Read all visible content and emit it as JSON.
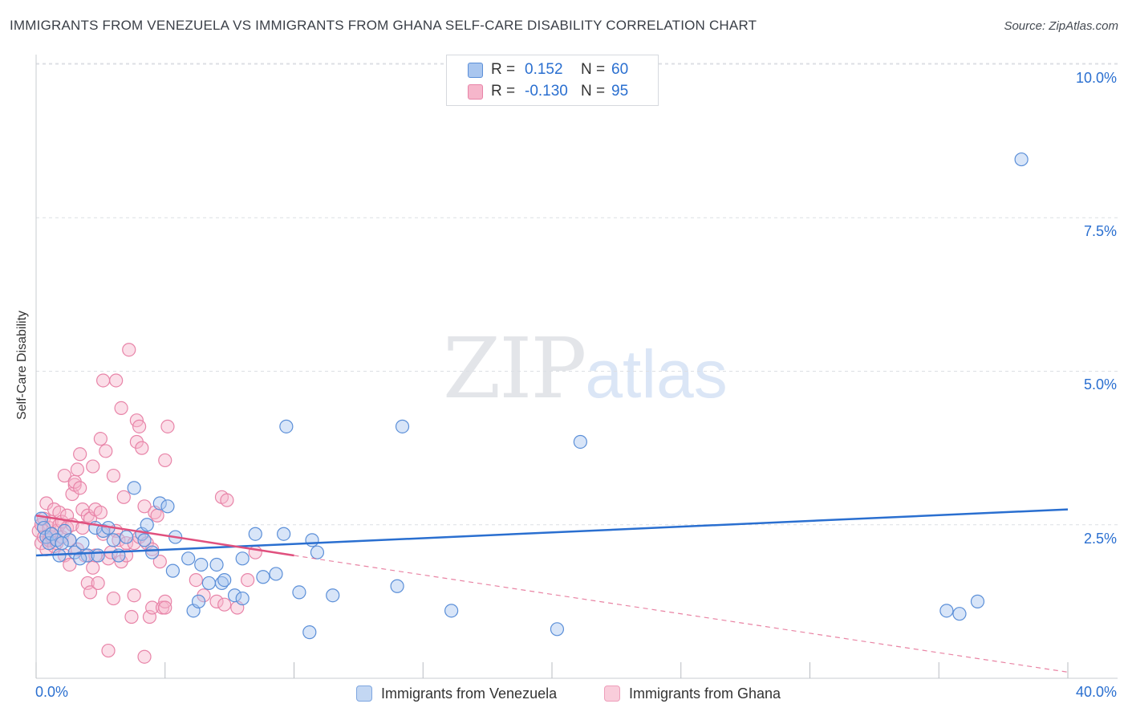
{
  "title": "IMMIGRANTS FROM VENEZUELA VS IMMIGRANTS FROM GHANA SELF-CARE DISABILITY CORRELATION CHART",
  "source": "Source: ZipAtlas.com",
  "watermark": {
    "zip": "ZIP",
    "atlas": "atlas"
  },
  "legend": {
    "rows": [
      {
        "r_label": "R =",
        "r_value": "0.152",
        "n_label": "N =",
        "n_value": "60"
      },
      {
        "r_label": "R =",
        "r_value": "-0.130",
        "n_label": "N =",
        "n_value": "95"
      }
    ]
  },
  "bottom_legend": {
    "venezuela": "Immigrants from Venezuela",
    "ghana": "Immigrants from Ghana"
  },
  "colors": {
    "venezuela_fill": "#a9c6ef",
    "venezuela_stroke": "#5b8fd8",
    "venezuela_line": "#2a6fd0",
    "ghana_fill": "#f6b6cb",
    "ghana_stroke": "#e884a8",
    "ghana_line": "#e0507e",
    "grid": "#dcdfe4",
    "tick_text": "#2a6fd0"
  },
  "chart_data": {
    "type": "scatter",
    "title": "IMMIGRANTS FROM VENEZUELA VS IMMIGRANTS FROM GHANA SELF-CARE DISABILITY CORRELATION CHART",
    "xlabel": "",
    "ylabel": "Self-Care Disability",
    "xlim": [
      0,
      40
    ],
    "ylim": [
      0,
      10.4
    ],
    "x_tick_labels": [
      "0.0%",
      "40.0%"
    ],
    "y_ticks": [
      2.5,
      5.0,
      7.5,
      10.0
    ],
    "y_tick_labels": [
      "2.5%",
      "5.0%",
      "7.5%",
      "10.0%"
    ],
    "legend_position": "top-center",
    "series": [
      {
        "name": "Immigrants from Venezuela",
        "R": 0.152,
        "N": 60,
        "trend": {
          "x": [
            0,
            40
          ],
          "y": [
            2.0,
            2.75
          ],
          "style": "solid"
        },
        "points": [
          [
            0.2,
            2.6
          ],
          [
            0.3,
            2.45
          ],
          [
            0.4,
            2.3
          ],
          [
            0.5,
            2.2
          ],
          [
            0.6,
            2.35
          ],
          [
            0.8,
            2.25
          ],
          [
            0.9,
            2.0
          ],
          [
            1.1,
            2.4
          ],
          [
            1.3,
            2.25
          ],
          [
            1.5,
            2.05
          ],
          [
            1.8,
            2.2
          ],
          [
            2.0,
            2.0
          ],
          [
            2.3,
            2.45
          ],
          [
            2.6,
            2.4
          ],
          [
            2.8,
            2.45
          ],
          [
            3.2,
            2.0
          ],
          [
            3.5,
            2.3
          ],
          [
            3.8,
            3.1
          ],
          [
            4.1,
            2.35
          ],
          [
            4.3,
            2.5
          ],
          [
            4.5,
            2.05
          ],
          [
            4.8,
            2.85
          ],
          [
            5.1,
            2.8
          ],
          [
            5.4,
            2.3
          ],
          [
            5.3,
            1.75
          ],
          [
            5.9,
            1.95
          ],
          [
            6.1,
            1.1
          ],
          [
            6.3,
            1.25
          ],
          [
            6.4,
            1.85
          ],
          [
            6.7,
            1.55
          ],
          [
            7.0,
            1.85
          ],
          [
            7.2,
            1.55
          ],
          [
            7.3,
            1.6
          ],
          [
            7.7,
            1.35
          ],
          [
            8.0,
            1.3
          ],
          [
            8.0,
            1.95
          ],
          [
            8.5,
            2.35
          ],
          [
            8.8,
            1.65
          ],
          [
            9.3,
            1.7
          ],
          [
            9.6,
            2.35
          ],
          [
            9.7,
            4.1
          ],
          [
            10.2,
            1.4
          ],
          [
            10.6,
            0.75
          ],
          [
            10.7,
            2.25
          ],
          [
            10.9,
            2.05
          ],
          [
            11.5,
            1.35
          ],
          [
            14.0,
            1.5
          ],
          [
            14.2,
            4.1
          ],
          [
            16.1,
            1.1
          ],
          [
            20.2,
            0.8
          ],
          [
            21.1,
            3.85
          ],
          [
            35.3,
            1.1
          ],
          [
            35.8,
            1.05
          ],
          [
            36.5,
            1.25
          ],
          [
            38.2,
            8.45
          ],
          [
            1.0,
            2.2
          ],
          [
            2.4,
            2.0
          ],
          [
            3.0,
            2.25
          ],
          [
            4.2,
            2.25
          ],
          [
            1.7,
            1.95
          ]
        ]
      },
      {
        "name": "Immigrants from Ghana",
        "R": -0.13,
        "N": 95,
        "trend": {
          "x": [
            0,
            10
          ],
          "y": [
            2.65,
            2.0
          ],
          "style": "solid",
          "extension": {
            "x": [
              10,
              40
            ],
            "y": [
              2.0,
              0.1
            ],
            "style": "dashed"
          }
        },
        "points": [
          [
            0.1,
            2.4
          ],
          [
            0.2,
            2.5
          ],
          [
            0.2,
            2.2
          ],
          [
            0.3,
            2.3
          ],
          [
            0.3,
            2.6
          ],
          [
            0.4,
            2.1
          ],
          [
            0.4,
            2.85
          ],
          [
            0.5,
            2.45
          ],
          [
            0.5,
            2.25
          ],
          [
            0.6,
            2.3
          ],
          [
            0.6,
            2.55
          ],
          [
            0.7,
            2.15
          ],
          [
            0.7,
            2.75
          ],
          [
            0.8,
            2.4
          ],
          [
            0.8,
            2.2
          ],
          [
            0.9,
            2.5
          ],
          [
            0.9,
            2.7
          ],
          [
            1.0,
            2.3
          ],
          [
            1.0,
            2.55
          ],
          [
            1.1,
            3.3
          ],
          [
            1.1,
            2.0
          ],
          [
            1.2,
            2.45
          ],
          [
            1.2,
            2.65
          ],
          [
            1.3,
            1.85
          ],
          [
            1.3,
            2.25
          ],
          [
            1.4,
            2.5
          ],
          [
            1.4,
            3.0
          ],
          [
            1.5,
            3.15
          ],
          [
            1.5,
            3.2
          ],
          [
            1.6,
            2.1
          ],
          [
            1.6,
            3.4
          ],
          [
            1.7,
            3.65
          ],
          [
            1.7,
            3.1
          ],
          [
            1.8,
            2.75
          ],
          [
            1.8,
            2.45
          ],
          [
            1.9,
            2.0
          ],
          [
            2.0,
            2.65
          ],
          [
            2.0,
            1.55
          ],
          [
            2.1,
            2.6
          ],
          [
            2.1,
            1.4
          ],
          [
            2.2,
            1.8
          ],
          [
            2.2,
            3.45
          ],
          [
            2.3,
            2.75
          ],
          [
            2.3,
            2.0
          ],
          [
            2.4,
            1.55
          ],
          [
            2.5,
            2.7
          ],
          [
            2.5,
            3.9
          ],
          [
            2.6,
            2.35
          ],
          [
            2.6,
            4.85
          ],
          [
            2.7,
            3.7
          ],
          [
            2.8,
            1.95
          ],
          [
            2.8,
            0.45
          ],
          [
            2.9,
            2.05
          ],
          [
            3.0,
            1.3
          ],
          [
            3.0,
            3.3
          ],
          [
            3.1,
            2.4
          ],
          [
            3.1,
            4.85
          ],
          [
            3.2,
            2.25
          ],
          [
            3.3,
            1.9
          ],
          [
            3.3,
            4.4
          ],
          [
            3.4,
            2.95
          ],
          [
            3.5,
            2.0
          ],
          [
            3.5,
            2.2
          ],
          [
            3.6,
            5.35
          ],
          [
            3.7,
            1.0
          ],
          [
            3.8,
            1.35
          ],
          [
            3.8,
            2.2
          ],
          [
            3.9,
            4.2
          ],
          [
            3.9,
            3.85
          ],
          [
            4.0,
            4.1
          ],
          [
            4.0,
            2.3
          ],
          [
            4.1,
            3.75
          ],
          [
            4.2,
            0.35
          ],
          [
            4.2,
            2.8
          ],
          [
            4.3,
            2.2
          ],
          [
            4.4,
            1.0
          ],
          [
            4.5,
            2.1
          ],
          [
            4.5,
            1.15
          ],
          [
            4.6,
            2.7
          ],
          [
            4.7,
            2.65
          ],
          [
            4.8,
            1.9
          ],
          [
            4.9,
            1.15
          ],
          [
            5.0,
            1.25
          ],
          [
            5.0,
            3.55
          ],
          [
            5.1,
            4.1
          ],
          [
            5.0,
            1.15
          ],
          [
            6.2,
            1.6
          ],
          [
            6.5,
            1.35
          ],
          [
            7.0,
            1.25
          ],
          [
            7.2,
            2.95
          ],
          [
            7.4,
            2.9
          ],
          [
            7.3,
            1.2
          ],
          [
            7.8,
            1.15
          ],
          [
            8.2,
            1.6
          ],
          [
            8.5,
            2.05
          ]
        ]
      }
    ]
  }
}
